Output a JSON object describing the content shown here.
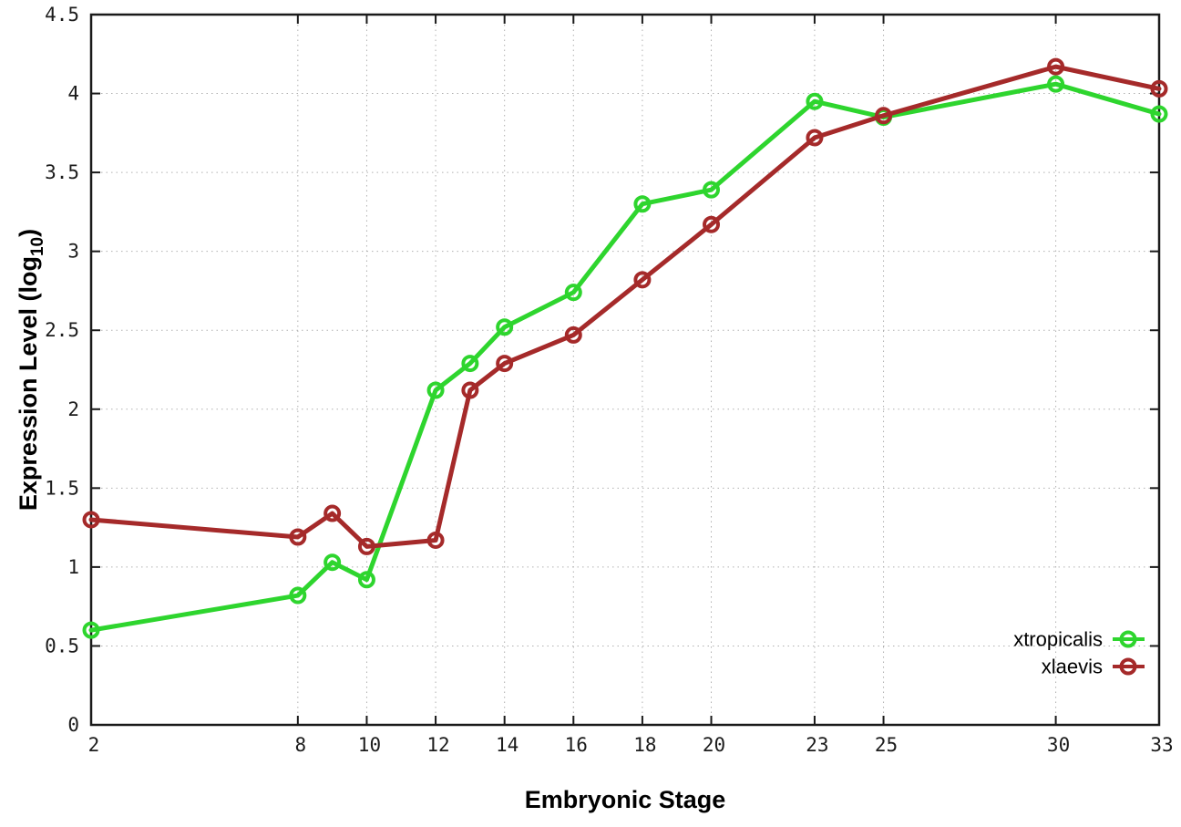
{
  "chart_data": {
    "type": "line",
    "title": "",
    "xlabel": "Embryonic Stage",
    "ylabel": "Expression Level (log10)",
    "ylabel_parts": {
      "pre": "Expression Level (log",
      "sub": "10",
      "post": ")"
    },
    "xlim": [
      2,
      33
    ],
    "ylim": [
      0,
      4.5
    ],
    "x_ticks": [
      2,
      8,
      10,
      12,
      14,
      16,
      18,
      20,
      23,
      25,
      30,
      33
    ],
    "y_ticks": [
      0,
      0.5,
      1,
      1.5,
      2,
      2.5,
      3,
      3.5,
      4,
      4.5
    ],
    "grid": true,
    "grid_style": "dotted",
    "legend_position": "inside-bottom-right",
    "x": [
      2,
      8,
      9,
      10,
      12,
      13,
      14,
      16,
      18,
      20,
      23,
      25,
      30,
      33
    ],
    "series": [
      {
        "name": "xtropicalis",
        "color": "#2ed52e",
        "marker": "open-circle",
        "values": [
          0.6,
          0.82,
          1.03,
          0.92,
          2.12,
          2.29,
          2.52,
          2.74,
          3.3,
          3.39,
          3.95,
          3.85,
          4.06,
          3.87
        ]
      },
      {
        "name": "xlaevis",
        "color": "#a52a2a",
        "marker": "open-circle",
        "values": [
          1.3,
          1.19,
          1.34,
          1.13,
          1.17,
          2.12,
          2.29,
          2.47,
          2.82,
          3.17,
          3.72,
          3.86,
          4.17,
          4.03
        ]
      }
    ]
  },
  "style": {
    "background": "#ffffff",
    "axis_color": "#1a1a1a",
    "grid_color": "#b0b0b0",
    "text_color": "#000000"
  }
}
